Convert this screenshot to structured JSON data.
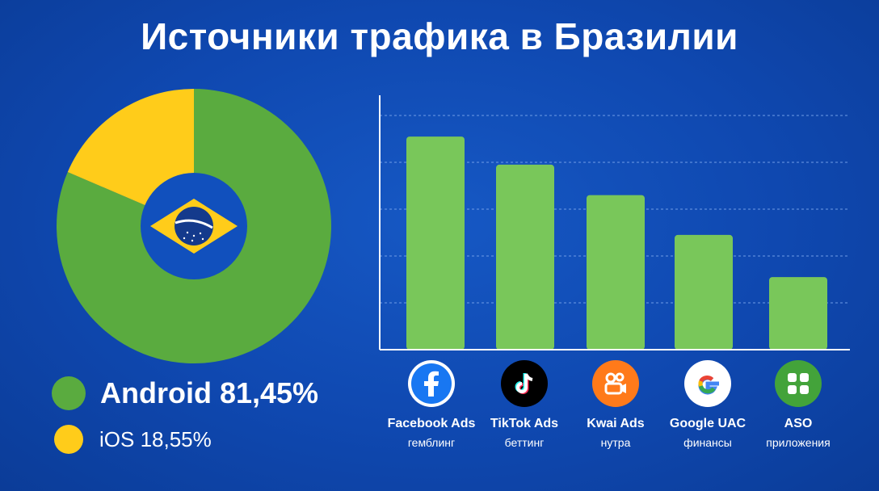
{
  "title": "Источники трафика в Бразилии",
  "colors": {
    "background": "#1150bd",
    "android": "#5aab3f",
    "ios": "#ffcc1a",
    "bar": "#79c75a",
    "grid": "#6f9ce6"
  },
  "legend": {
    "android": "Android 81,45%",
    "ios": "iOS 18,55%"
  },
  "center_icon": "brazil-flag-icon",
  "chart_data": [
    {
      "type": "pie",
      "variant": "donut",
      "slices": [
        {
          "label": "Android",
          "value": 81.45,
          "color": "#5aab3f"
        },
        {
          "label": "iOS",
          "value": 18.55,
          "color": "#ffcc1a"
        }
      ]
    },
    {
      "type": "bar",
      "categories": [
        "Facebook Ads",
        "TikTok Ads",
        "Kwai Ads",
        "Google UAC",
        "ASO"
      ],
      "subcategories": [
        "гемблинг",
        "беттинг",
        "нутра",
        "финансы",
        "приложения"
      ],
      "icons": [
        "facebook-icon",
        "tiktok-icon",
        "kwai-icon",
        "google-icon",
        "aso-apps-icon"
      ],
      "values": [
        91,
        79,
        66,
        49,
        31
      ],
      "ylim": [
        0,
        100
      ],
      "grid": true,
      "gridlines": [
        20,
        40,
        60,
        80,
        100
      ]
    }
  ]
}
